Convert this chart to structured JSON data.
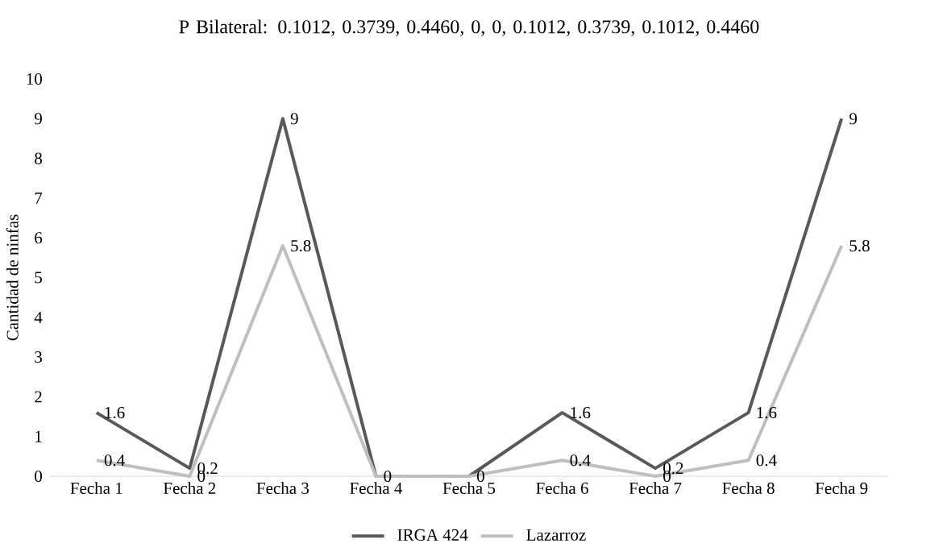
{
  "chart_data": {
    "type": "line",
    "title": "P Bilateral: 0.1012, 0.3739, 0.4460, 0, 0, 0.1012, 0.3739, 0.1012, 0.4460",
    "ylabel": "Cantidad de ninfas",
    "categories": [
      "Fecha 1",
      "Fecha 2",
      "Fecha 3",
      "Fecha 4",
      "Fecha 5",
      "Fecha 6",
      "Fecha 7",
      "Fecha 8",
      "Fecha 9"
    ],
    "series": [
      {
        "name": "IRGA 424",
        "color": "#595959",
        "values": [
          1.6,
          0.2,
          9,
          0,
          0,
          1.6,
          0.2,
          1.6,
          9
        ],
        "value_labels": [
          "1.6",
          "0.2",
          "9",
          "0",
          "0",
          "1.6",
          "0.2",
          "1.6",
          "9"
        ]
      },
      {
        "name": "Lazarroz",
        "color": "#bfbfbf",
        "values": [
          0.4,
          0,
          5.8,
          0,
          0,
          0.4,
          0,
          0.4,
          5.8
        ],
        "value_labels": [
          "0.4",
          "0",
          "5.8",
          null,
          null,
          "0.4",
          "0",
          "0.4",
          "5.8"
        ]
      }
    ],
    "ylim": [
      0,
      10
    ],
    "yticks": [
      0,
      1,
      2,
      3,
      4,
      5,
      6,
      7,
      8,
      9,
      10
    ],
    "legend": "bottom",
    "marker": "none",
    "line_style": "solid"
  }
}
